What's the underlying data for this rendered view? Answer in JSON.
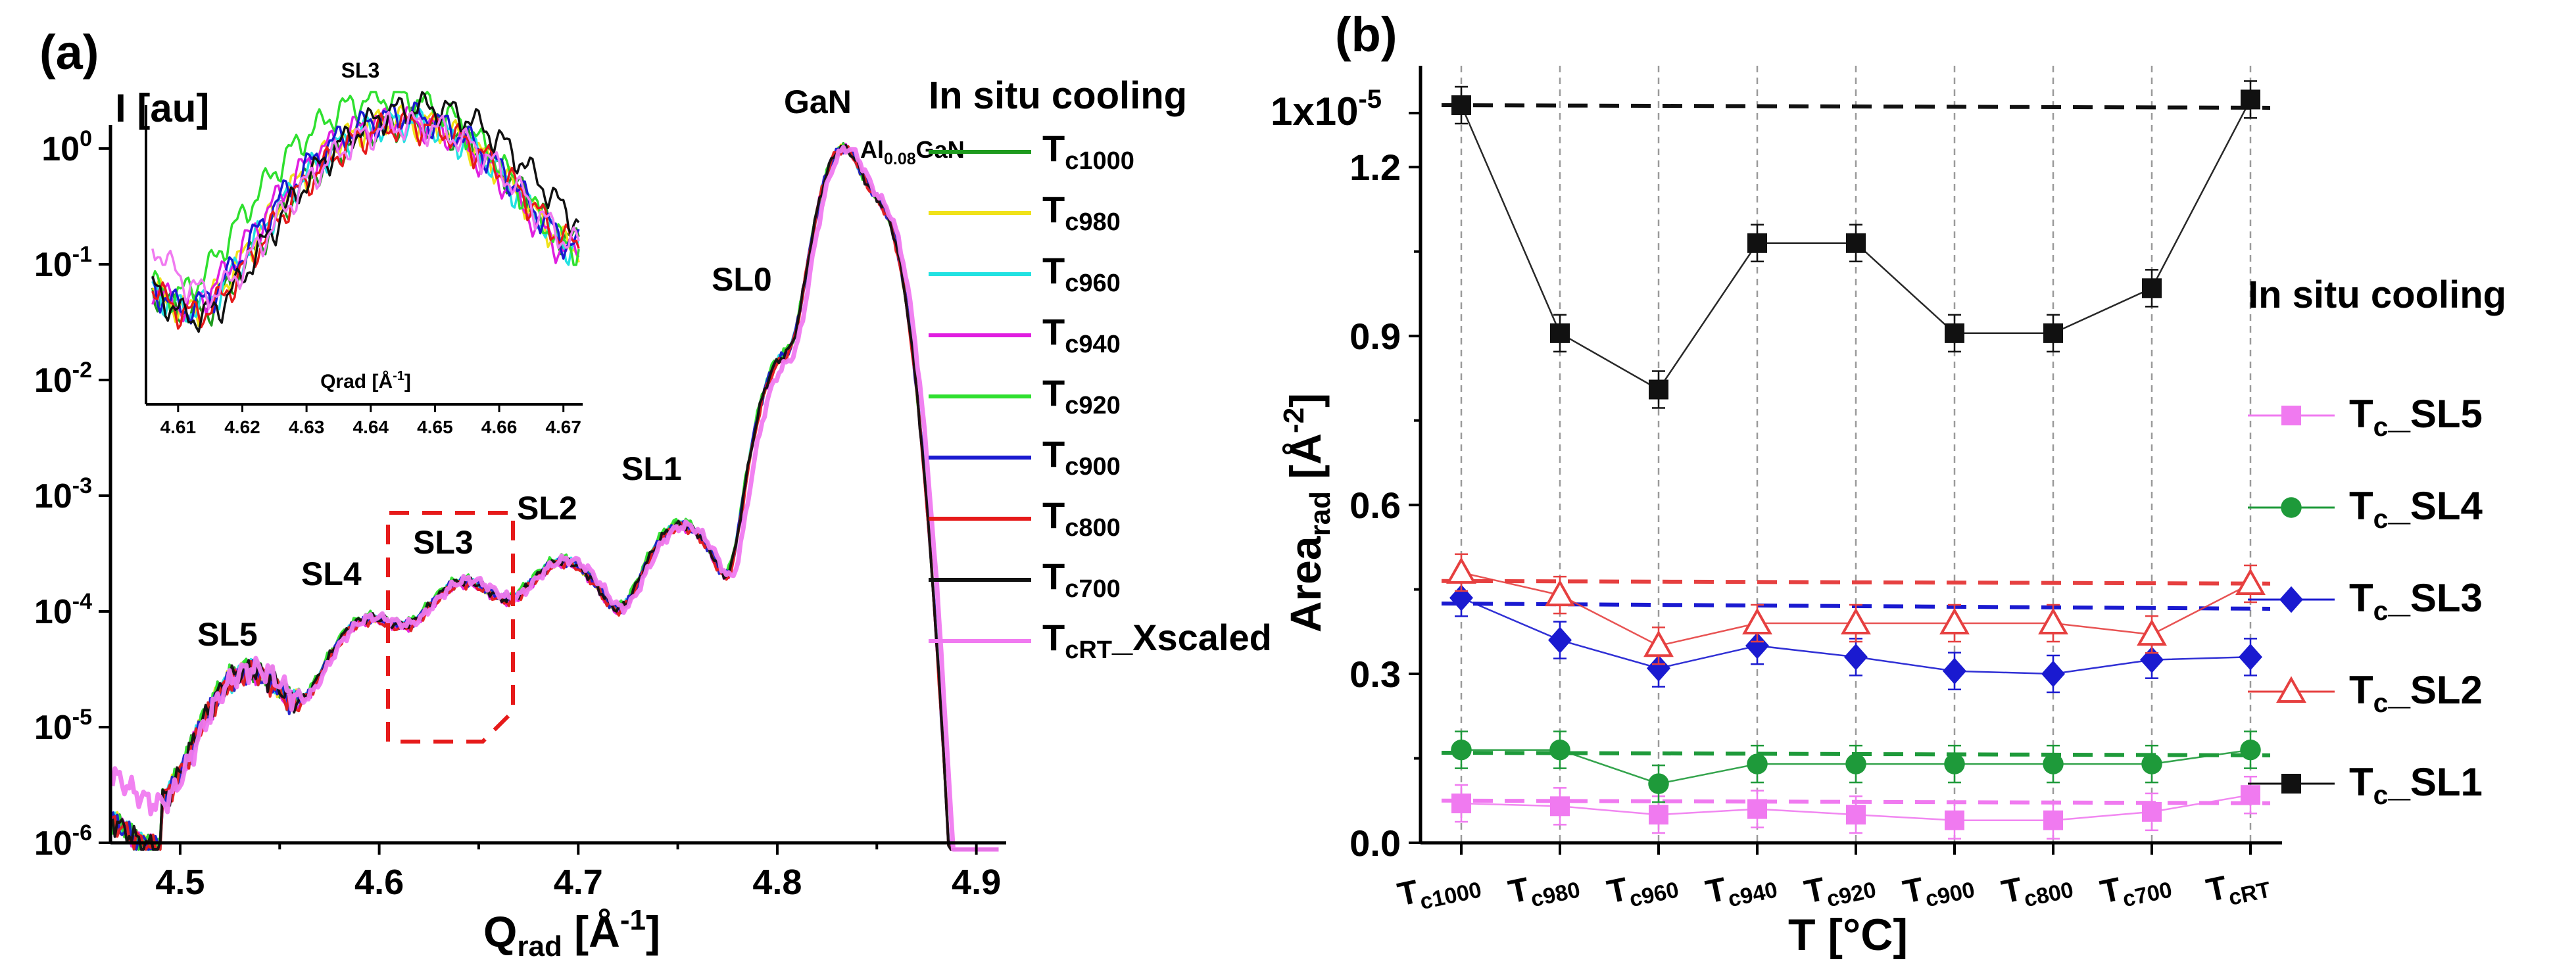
{
  "panel_a": {
    "label": "(a)",
    "y_axis_label": "I [au]",
    "x_axis_label": {
      "main": "Q",
      "sub": "rad",
      "unit": " [Å",
      "exp": "-1",
      "close": "]"
    },
    "y_ticks": [
      {
        "base": "10",
        "exp": "0"
      },
      {
        "base": "10",
        "exp": "-1"
      },
      {
        "base": "10",
        "exp": "-2"
      },
      {
        "base": "10",
        "exp": "-3"
      },
      {
        "base": "10",
        "exp": "-4"
      },
      {
        "base": "10",
        "exp": "-5"
      },
      {
        "base": "10",
        "exp": "-6"
      }
    ],
    "x_ticks": [
      "4.5",
      "4.6",
      "4.7",
      "4.8",
      "4.9"
    ],
    "peak_labels": [
      "SL5",
      "SL4",
      "SL3",
      "SL2",
      "SL1",
      "SL0",
      "GaN"
    ],
    "algan_label": {
      "pre": "Al",
      "sub": "0.08",
      "post": "GaN"
    },
    "legend_title": "In situ cooling",
    "legend": [
      {
        "main": "T",
        "sub": "c1000",
        "post": "",
        "color": "#1e9a1e"
      },
      {
        "main": "T",
        "sub": "c980",
        "post": "",
        "color": "#f0e21a"
      },
      {
        "main": "T",
        "sub": "c960",
        "post": "",
        "color": "#22e2e2"
      },
      {
        "main": "T",
        "sub": "c940",
        "post": "",
        "color": "#e01ee0"
      },
      {
        "main": "T",
        "sub": "c920",
        "post": "",
        "color": "#2fe02f"
      },
      {
        "main": "T",
        "sub": "c900",
        "post": "",
        "color": "#1a1ad0"
      },
      {
        "main": "T",
        "sub": "c800",
        "post": "",
        "color": "#e61a1a"
      },
      {
        "main": "T",
        "sub": "c700",
        "post": "",
        "color": "#111111"
      },
      {
        "main": "T",
        "sub": "cRT",
        "post": "_Xscaled",
        "color": "#f07af0"
      }
    ],
    "inset": {
      "title": "SL3",
      "x_label": {
        "main": "Qrad [Å",
        "exp": "-1",
        "close": "]"
      },
      "x_ticks": [
        "4.61",
        "4.62",
        "4.63",
        "4.64",
        "4.65",
        "4.66",
        "4.67"
      ]
    }
  },
  "panel_b": {
    "label": "(b)",
    "legend_title": "In situ cooling",
    "y_axis_label": {
      "main": "Area",
      "sub": "rad",
      "unit": " [Å",
      "exp": "-2",
      "close": "]"
    },
    "x_axis_label": "T [°C]",
    "y_top_label": {
      "base": "1x10",
      "exp": "-5"
    },
    "y_ticks": [
      "1.2",
      "0.9",
      "0.6",
      "0.3",
      "0.0"
    ],
    "legend": [
      {
        "main": "T",
        "sub": "c",
        "post": "_SL5",
        "color": "#f07af0",
        "marker": "square"
      },
      {
        "main": "T",
        "sub": "c",
        "post": "_SL4",
        "color": "#1e9a3a",
        "marker": "circle"
      },
      {
        "main": "T",
        "sub": "c",
        "post": "_SL3",
        "color": "#1a1ad0",
        "marker": "diamond"
      },
      {
        "main": "T",
        "sub": "c",
        "post": "_SL2",
        "color": "#e64040",
        "marker": "triangle-open"
      },
      {
        "main": "T",
        "sub": "c",
        "post": "_SL1",
        "color": "#111111",
        "marker": "square"
      }
    ]
  },
  "chart_data": [
    {
      "type": "line",
      "title": "(a)",
      "xlabel": "Qrad [Å-1]",
      "ylabel": "I [au]",
      "yscale": "log",
      "xlim": [
        4.465,
        4.915
      ],
      "ylim": [
        1e-06,
        1.6
      ],
      "legend_title": "In situ cooling",
      "series": [
        {
          "name": "Tc1000",
          "peak_scale": [
            3.2e-05,
            8.8e-05,
            0.000185,
            0.00028,
            0.00058,
            0.0155,
            1.0,
            0.28
          ]
        },
        {
          "name": "Tc980",
          "peak_scale": [
            3.1e-05,
            8.5e-05,
            0.00018,
            0.00027,
            0.00056,
            0.015,
            1.0,
            0.27
          ]
        },
        {
          "name": "Tc960",
          "peak_scale": [
            3e-05,
            8.3e-05,
            0.000175,
            0.00027,
            0.00055,
            0.015,
            1.0,
            0.27
          ]
        },
        {
          "name": "Tc940",
          "peak_scale": [
            3e-05,
            8.2e-05,
            0.00017,
            0.00026,
            0.00054,
            0.0145,
            1.0,
            0.27
          ]
        },
        {
          "name": "Tc920",
          "peak_scale": [
            3.3e-05,
            9e-05,
            0.00019,
            0.00029,
            0.0006,
            0.016,
            1.0,
            0.28
          ]
        },
        {
          "name": "Tc900",
          "peak_scale": [
            3e-05,
            8.4e-05,
            0.00018,
            0.00027,
            0.00055,
            0.015,
            1.0,
            0.27
          ]
        },
        {
          "name": "Tc800",
          "peak_scale": [
            2.9e-05,
            8.1e-05,
            0.00017,
            0.00026,
            0.00053,
            0.014,
            1.0,
            0.26
          ]
        },
        {
          "name": "Tc700",
          "peak_scale": [
            3.1e-05,
            8.6e-05,
            0.00018,
            0.00027,
            0.00056,
            0.015,
            1.0,
            0.27
          ]
        },
        {
          "name": "TcRT_Xscaled",
          "peak_scale": [
            3.2e-05,
            8.7e-05,
            0.000185,
            0.00028,
            0.00055,
            0.013,
            1.0,
            0.26
          ]
        }
      ],
      "peaks": {
        "labels": [
          "SL5",
          "SL4",
          "SL3",
          "SL2",
          "SL1",
          "SL0",
          "GaN",
          "Al0.08GaN"
        ],
        "q": [
          4.535,
          4.595,
          4.643,
          4.693,
          4.752,
          4.803,
          4.833,
          4.852
        ]
      },
      "annotations": [
        "dashed box around SL3 region (4.61–4.67)"
      ],
      "inset": {
        "title": "SL3",
        "xlabel": "Qrad [Å-1]",
        "xlim": [
          4.605,
          4.673
        ],
        "ylim": [
          0.0048,
          1.6
        ],
        "yscale": "log",
        "peak_center": [
          4.646,
          4.645,
          4.645,
          4.644,
          4.643,
          4.645,
          4.646,
          4.648,
          4.646
        ],
        "peak_max": [
          1.15,
          1.2,
          1.15,
          1.2,
          1.9,
          1.3,
          1.1,
          1.55,
          1.1
        ]
      }
    },
    {
      "type": "line",
      "title": "(b)",
      "xlabel": "T [°C]",
      "ylabel": "Area_rad [Å-2]",
      "y_scale_factor": "1x10^-5",
      "categories": [
        "Tc1000",
        "Tc980",
        "Tc960",
        "Tc940",
        "Tc920",
        "Tc900",
        "Tc800",
        "Tc700",
        "TcRT"
      ],
      "ylim": [
        0,
        1.38
      ],
      "legend_title": "In situ cooling",
      "series": [
        {
          "name": "Tc_SL5",
          "values": [
            0.07,
            0.065,
            0.05,
            0.06,
            0.05,
            0.04,
            0.04,
            0.055,
            0.085
          ],
          "ref": 0.075
        },
        {
          "name": "Tc_SL4",
          "values": [
            0.165,
            0.165,
            0.105,
            0.14,
            0.14,
            0.14,
            0.14,
            0.14,
            0.165
          ],
          "ref": 0.16
        },
        {
          "name": "Tc_SL3",
          "values": [
            0.435,
            0.36,
            0.31,
            0.35,
            0.33,
            0.305,
            0.3,
            0.325,
            0.33
          ],
          "ref": 0.425
        },
        {
          "name": "Tc_SL2",
          "values": [
            0.48,
            0.44,
            0.35,
            0.39,
            0.39,
            0.39,
            0.39,
            0.37,
            0.46
          ],
          "ref": 0.465
        },
        {
          "name": "Tc_SL1",
          "values": [
            1.31,
            0.905,
            0.805,
            1.065,
            1.065,
            0.905,
            0.905,
            0.985,
            1.32
          ],
          "ref": 1.31
        }
      ]
    }
  ]
}
